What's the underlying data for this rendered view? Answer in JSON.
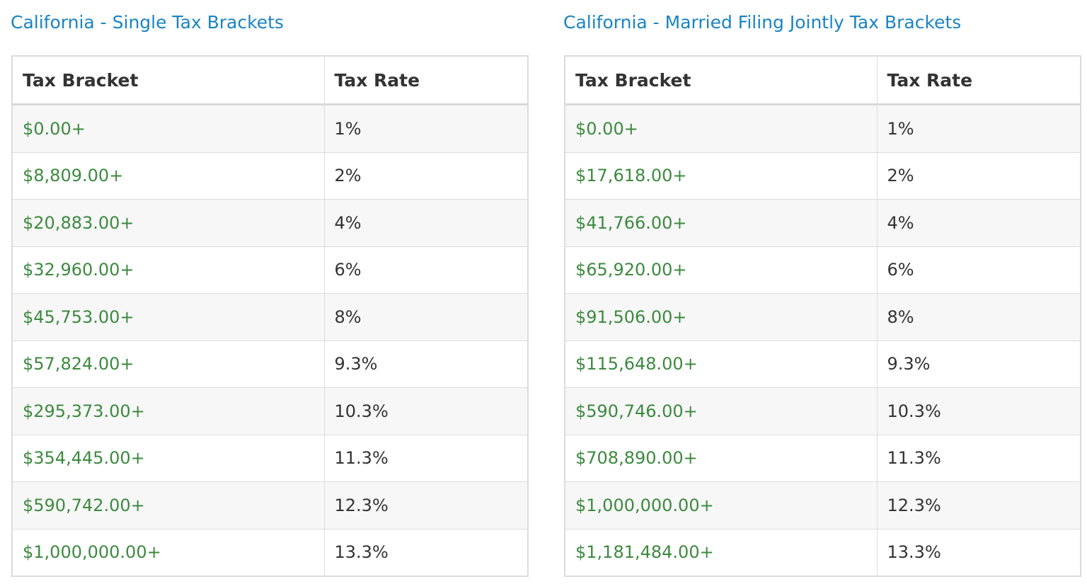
{
  "tables": [
    {
      "title": "California - Single Tax Brackets",
      "headers": {
        "bracket": "Tax Bracket",
        "rate": "Tax Rate"
      },
      "rows": [
        {
          "bracket": "$0.00+",
          "rate": "1%"
        },
        {
          "bracket": "$8,809.00+",
          "rate": "2%"
        },
        {
          "bracket": "$20,883.00+",
          "rate": "4%"
        },
        {
          "bracket": "$32,960.00+",
          "rate": "6%"
        },
        {
          "bracket": "$45,753.00+",
          "rate": "8%"
        },
        {
          "bracket": "$57,824.00+",
          "rate": "9.3%"
        },
        {
          "bracket": "$295,373.00+",
          "rate": "10.3%"
        },
        {
          "bracket": "$354,445.00+",
          "rate": "11.3%"
        },
        {
          "bracket": "$590,742.00+",
          "rate": "12.3%"
        },
        {
          "bracket": "$1,000,000.00+",
          "rate": "13.3%"
        }
      ]
    },
    {
      "title": "California - Married Filing Jointly Tax Brackets",
      "headers": {
        "bracket": "Tax Bracket",
        "rate": "Tax Rate"
      },
      "rows": [
        {
          "bracket": "$0.00+",
          "rate": "1%"
        },
        {
          "bracket": "$17,618.00+",
          "rate": "2%"
        },
        {
          "bracket": "$41,766.00+",
          "rate": "4%"
        },
        {
          "bracket": "$65,920.00+",
          "rate": "6%"
        },
        {
          "bracket": "$91,506.00+",
          "rate": "8%"
        },
        {
          "bracket": "$115,648.00+",
          "rate": "9.3%"
        },
        {
          "bracket": "$590,746.00+",
          "rate": "10.3%"
        },
        {
          "bracket": "$708,890.00+",
          "rate": "11.3%"
        },
        {
          "bracket": "$1,000,000.00+",
          "rate": "12.3%"
        },
        {
          "bracket": "$1,181,484.00+",
          "rate": "13.3%"
        }
      ]
    }
  ],
  "colors": {
    "title": "#1a84c3",
    "amount": "#3c8a3f",
    "text": "#333333",
    "border": "#dcdcdc",
    "stripe": "#f7f7f7"
  }
}
